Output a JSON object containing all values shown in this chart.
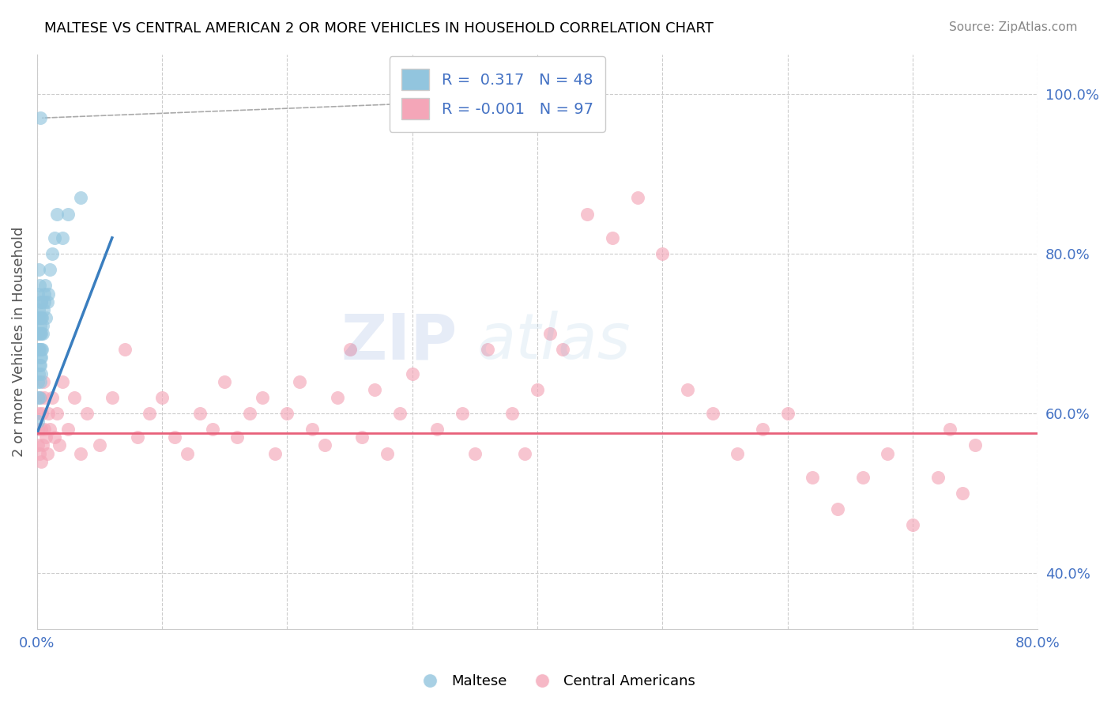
{
  "title": "MALTESE VS CENTRAL AMERICAN 2 OR MORE VEHICLES IN HOUSEHOLD CORRELATION CHART",
  "source": "Source: ZipAtlas.com",
  "ylabel": "2 or more Vehicles in Household",
  "xlim": [
    0.0,
    80.0
  ],
  "ylim": [
    33.0,
    105.0
  ],
  "xtick_positions": [
    0,
    10,
    20,
    30,
    40,
    50,
    60,
    70,
    80
  ],
  "xtick_labels": [
    "0.0%",
    "",
    "",
    "",
    "",
    "",
    "",
    "",
    "80.0%"
  ],
  "ytick_positions": [
    40,
    60,
    80,
    100
  ],
  "ytick_labels": [
    "40.0%",
    "60.0%",
    "80.0%",
    "100.0%"
  ],
  "maltese_R": 0.317,
  "maltese_N": 48,
  "central_R": -0.001,
  "central_N": 97,
  "blue_color": "#92c5de",
  "pink_color": "#f4a6b8",
  "blue_line_color": "#3a7ebf",
  "pink_line_color": "#e8607a",
  "watermark_zip": "ZIP",
  "watermark_atlas": "atlas",
  "maltese_x": [
    0.05,
    0.05,
    0.08,
    0.08,
    0.1,
    0.1,
    0.1,
    0.12,
    0.12,
    0.15,
    0.15,
    0.18,
    0.18,
    0.2,
    0.2,
    0.2,
    0.22,
    0.25,
    0.25,
    0.25,
    0.28,
    0.28,
    0.3,
    0.3,
    0.3,
    0.32,
    0.35,
    0.35,
    0.35,
    0.4,
    0.4,
    0.42,
    0.45,
    0.5,
    0.55,
    0.6,
    0.65,
    0.7,
    0.8,
    0.9,
    1.0,
    1.2,
    1.4,
    1.6,
    2.0,
    2.5,
    3.5,
    0.28
  ],
  "maltese_y": [
    59.0,
    62.0,
    64.0,
    68.0,
    70.0,
    72.0,
    75.0,
    78.0,
    73.0,
    65.0,
    68.0,
    72.0,
    76.0,
    62.0,
    66.0,
    70.0,
    68.0,
    64.0,
    67.0,
    71.0,
    66.0,
    70.0,
    65.0,
    68.0,
    72.0,
    74.0,
    67.0,
    70.0,
    74.0,
    68.0,
    72.0,
    70.0,
    71.0,
    73.0,
    74.0,
    75.0,
    76.0,
    72.0,
    74.0,
    75.0,
    78.0,
    80.0,
    82.0,
    85.0,
    82.0,
    85.0,
    87.0,
    97.0
  ],
  "central_x": [
    0.05,
    0.1,
    0.15,
    0.2,
    0.25,
    0.3,
    0.35,
    0.4,
    0.45,
    0.5,
    0.55,
    0.6,
    0.7,
    0.8,
    0.9,
    1.0,
    1.2,
    1.4,
    1.6,
    1.8,
    2.0,
    2.5,
    3.0,
    3.5,
    4.0,
    5.0,
    6.0,
    7.0,
    8.0,
    9.0,
    10.0,
    11.0,
    12.0,
    13.0,
    14.0,
    15.0,
    16.0,
    17.0,
    18.0,
    19.0,
    20.0,
    21.0,
    22.0,
    23.0,
    24.0,
    25.0,
    26.0,
    27.0,
    28.0,
    29.0,
    30.0,
    32.0,
    34.0,
    35.0,
    36.0,
    38.0,
    39.0,
    40.0,
    41.0,
    42.0,
    44.0,
    46.0,
    48.0,
    50.0,
    52.0,
    54.0,
    56.0,
    58.0,
    60.0,
    62.0,
    64.0,
    66.0,
    68.0,
    70.0,
    72.0,
    73.0,
    74.0,
    75.0
  ],
  "central_y": [
    58.0,
    56.0,
    60.0,
    55.0,
    62.0,
    58.0,
    54.0,
    60.0,
    56.0,
    64.0,
    58.0,
    62.0,
    57.0,
    55.0,
    60.0,
    58.0,
    62.0,
    57.0,
    60.0,
    56.0,
    64.0,
    58.0,
    62.0,
    55.0,
    60.0,
    56.0,
    62.0,
    68.0,
    57.0,
    60.0,
    62.0,
    57.0,
    55.0,
    60.0,
    58.0,
    64.0,
    57.0,
    60.0,
    62.0,
    55.0,
    60.0,
    64.0,
    58.0,
    56.0,
    62.0,
    68.0,
    57.0,
    63.0,
    55.0,
    60.0,
    65.0,
    58.0,
    60.0,
    55.0,
    68.0,
    60.0,
    55.0,
    63.0,
    70.0,
    68.0,
    85.0,
    82.0,
    87.0,
    80.0,
    63.0,
    60.0,
    55.0,
    58.0,
    60.0,
    52.0,
    48.0,
    52.0,
    55.0,
    46.0,
    52.0,
    58.0,
    50.0,
    56.0
  ],
  "pink_flat_y": 57.5,
  "blue_line_x0": 0.0,
  "blue_line_y0": 57.5,
  "blue_line_x1": 6.0,
  "blue_line_y1": 82.0
}
